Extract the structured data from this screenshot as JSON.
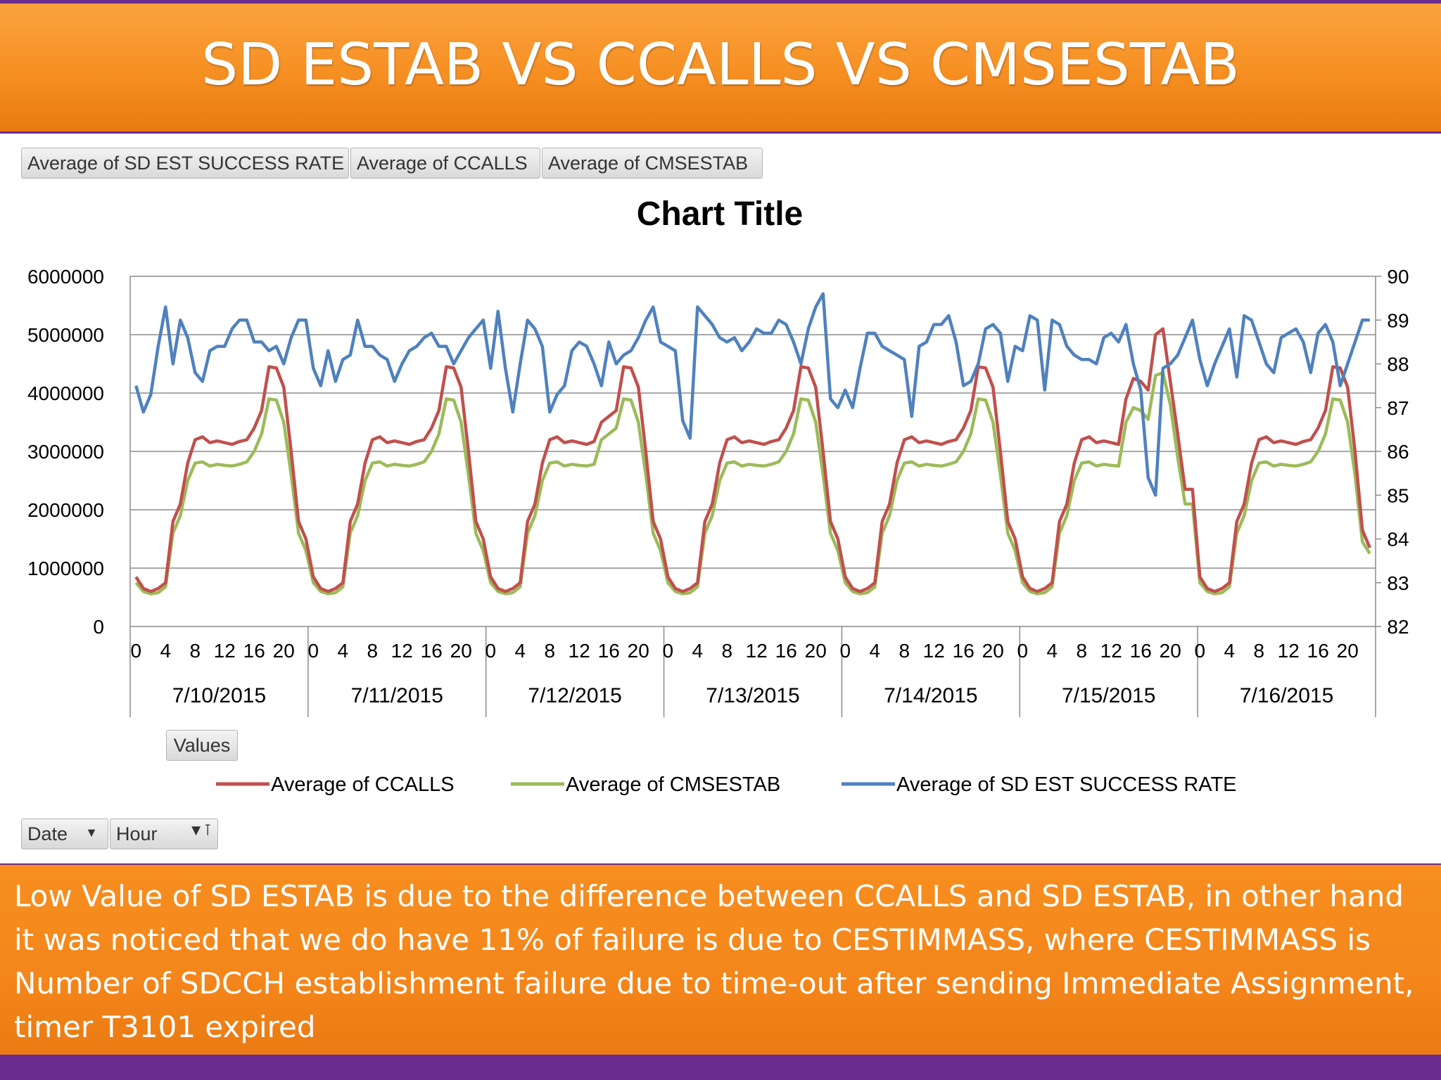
{
  "slide": {
    "title": "SD ESTAB VS CCALLS VS CMSESTAB",
    "note": "Low Value of SD ESTAB is due to  the difference between CCALLS and SD ESTAB, in other hand it was noticed that we do have 11% of  failure is due to CESTIMMASS, where CESTIMMASS is Number of SDCCH establishment failure due to time-out after sending Immediate Assignment, timer T3101 expired"
  },
  "pivot": {
    "value_fields": [
      "Average of SD EST SUCCESS RATE",
      "Average of CCALLS",
      "Average of CMSESTAB"
    ],
    "values_button": "Values",
    "row_fields": [
      {
        "label": "Date",
        "icon": "dropdown-arrow-icon"
      },
      {
        "label": "Hour",
        "icon": "filter-dropdown-icon"
      }
    ]
  },
  "chart_data": {
    "type": "line",
    "title": "Chart Title",
    "dates": [
      "7/10/2015",
      "7/11/2015",
      "7/12/2015",
      "7/13/2015",
      "7/14/2015",
      "7/15/2015",
      "7/16/2015"
    ],
    "hour_tick_labels": [
      "0",
      "4",
      "8",
      "12",
      "16",
      "20"
    ],
    "hours_per_day": 24,
    "y_left": {
      "ylim": [
        0,
        6000000
      ],
      "ticks": [
        "0",
        "1000000",
        "2000000",
        "3000000",
        "4000000",
        "5000000",
        "6000000"
      ]
    },
    "y_right": {
      "ylim": [
        82,
        90
      ],
      "ticks": [
        "82",
        "83",
        "84",
        "85",
        "86",
        "87",
        "88",
        "89",
        "90"
      ]
    },
    "grid": true,
    "legend_position": "bottom",
    "series": [
      {
        "name": "Average of CCALLS",
        "axis": "left",
        "color": "#c0504d"
      },
      {
        "name": "Average of CMSESTAB",
        "axis": "left",
        "color": "#9bbb59"
      },
      {
        "name": "Average of SD EST SUCCESS RATE",
        "axis": "right",
        "color": "#4f81bd"
      }
    ],
    "ccalls_profile": [
      850000,
      650000,
      600000,
      650000,
      750000,
      1800000,
      2100000,
      2800000,
      3200000,
      3250000,
      3150000,
      3180000,
      3150000,
      3120000,
      3170000,
      3200000,
      3400000,
      3700000,
      4450000,
      4430000,
      4100000,
      3000000,
      1800000,
      1500000
    ],
    "cmsestab_profile": [
      750000,
      600000,
      560000,
      580000,
      680000,
      1600000,
      1900000,
      2500000,
      2800000,
      2820000,
      2750000,
      2780000,
      2760000,
      2750000,
      2780000,
      2820000,
      3000000,
      3300000,
      3900000,
      3880000,
      3500000,
      2600000,
      1600000,
      1300000
    ],
    "ccalls_overrides": {
      "2": {
        "15": 3500000,
        "16": 3600000,
        "17": 3700000
      },
      "5": {
        "14": 3900000,
        "15": 4250000,
        "16": 4200000,
        "17": 4050000,
        "18": 5000000,
        "19": 5100000,
        "20": 4200000,
        "21": 3300000,
        "22": 2350000,
        "23": 2350000
      },
      "6": {
        "22": 1650000,
        "23": 1350000
      }
    },
    "cmsestab_overrides": {
      "2": {
        "15": 3200000,
        "16": 3300000,
        "17": 3400000
      },
      "5": {
        "14": 3500000,
        "15": 3750000,
        "16": 3700000,
        "17": 3550000,
        "18": 4300000,
        "19": 4350000,
        "20": 3800000,
        "21": 2900000,
        "22": 2100000,
        "23": 2100000
      },
      "6": {
        "22": 1450000,
        "23": 1250000
      }
    },
    "sd_success_rate": [
      87.5,
      86.9,
      87.3,
      88.4,
      89.3,
      88.0,
      89.0,
      88.6,
      87.8,
      87.6,
      88.3,
      88.4,
      88.4,
      88.8,
      89.0,
      89.0,
      88.5,
      88.5,
      88.3,
      88.4,
      88.0,
      88.6,
      89.0,
      89.0,
      87.9,
      87.5,
      88.3,
      87.6,
      88.1,
      88.2,
      89.0,
      88.4,
      88.4,
      88.2,
      88.1,
      87.6,
      88.0,
      88.3,
      88.4,
      88.6,
      88.7,
      88.4,
      88.4,
      88.0,
      88.3,
      88.6,
      88.8,
      89.0,
      87.9,
      89.2,
      87.9,
      86.9,
      88.0,
      89.0,
      88.8,
      88.4,
      86.9,
      87.3,
      87.5,
      88.3,
      88.5,
      88.4,
      88.0,
      87.5,
      88.5,
      88.0,
      88.2,
      88.3,
      88.6,
      89.0,
      89.3,
      88.5,
      88.4,
      88.3,
      86.7,
      86.3,
      89.3,
      89.1,
      88.9,
      88.6,
      88.5,
      88.6,
      88.3,
      88.5,
      88.8,
      88.7,
      88.7,
      89.0,
      88.9,
      88.5,
      88.0,
      88.8,
      89.3,
      89.6,
      87.2,
      87.0,
      87.4,
      87.0,
      87.9,
      88.7,
      88.7,
      88.4,
      88.3,
      88.2,
      88.1,
      86.8,
      88.4,
      88.5,
      88.9,
      88.9,
      89.1,
      88.5,
      87.5,
      87.6,
      88.0,
      88.8,
      88.9,
      88.7,
      87.6,
      88.4,
      88.3,
      89.1,
      89.0,
      87.4,
      89.0,
      88.9,
      88.4,
      88.2,
      88.1,
      88.1,
      88.0,
      88.6,
      88.7,
      88.5,
      88.9,
      88.0,
      87.4,
      85.4,
      85.0,
      87.9,
      88.0,
      88.2,
      88.6,
      89.0,
      88.1,
      87.5,
      88.0,
      88.4,
      88.8,
      87.7,
      89.1,
      89.0,
      88.5,
      88.0,
      87.8,
      88.6,
      88.7,
      88.8,
      88.5,
      87.8,
      88.7,
      88.9,
      88.5,
      87.5,
      88.0,
      88.5,
      89.0,
      89.0
    ]
  }
}
